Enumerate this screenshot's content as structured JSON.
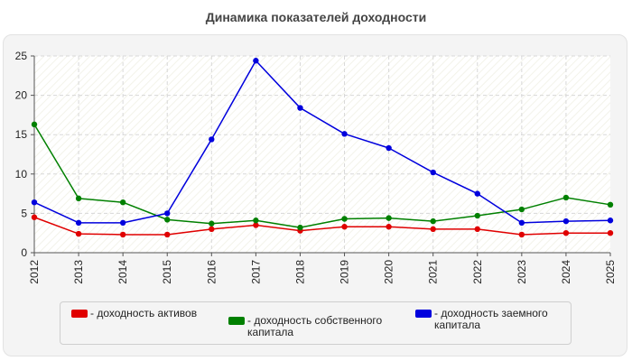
{
  "chart_data": {
    "type": "line",
    "title": "Динамика показателей доходности",
    "x": [
      "2012",
      "2013",
      "2014",
      "2015",
      "2016",
      "2017",
      "2018",
      "2019",
      "2020",
      "2021",
      "2022",
      "2023",
      "2024",
      "2025"
    ],
    "ylim": [
      0,
      25
    ],
    "yticks": [
      0,
      5,
      10,
      15,
      20,
      25
    ],
    "grid": true,
    "legend_position": "bottom",
    "series": [
      {
        "name": "- доходность активов",
        "color": "#e00000",
        "values": [
          4.5,
          2.4,
          2.3,
          2.3,
          3.0,
          3.5,
          2.8,
          3.3,
          3.3,
          3.0,
          3.0,
          2.3,
          2.5,
          2.5
        ]
      },
      {
        "name": "- доходность собственного капитала",
        "color": "#008000",
        "values": [
          16.3,
          6.9,
          6.4,
          4.2,
          3.7,
          4.1,
          3.2,
          4.3,
          4.4,
          4.0,
          4.7,
          5.5,
          7.0,
          6.1
        ]
      },
      {
        "name": "- доходность заемного капитала",
        "color": "#0000dd",
        "values": [
          6.4,
          3.8,
          3.8,
          5.0,
          14.4,
          24.4,
          18.4,
          15.1,
          13.3,
          10.2,
          7.5,
          3.8,
          4.0,
          4.1
        ]
      }
    ]
  }
}
